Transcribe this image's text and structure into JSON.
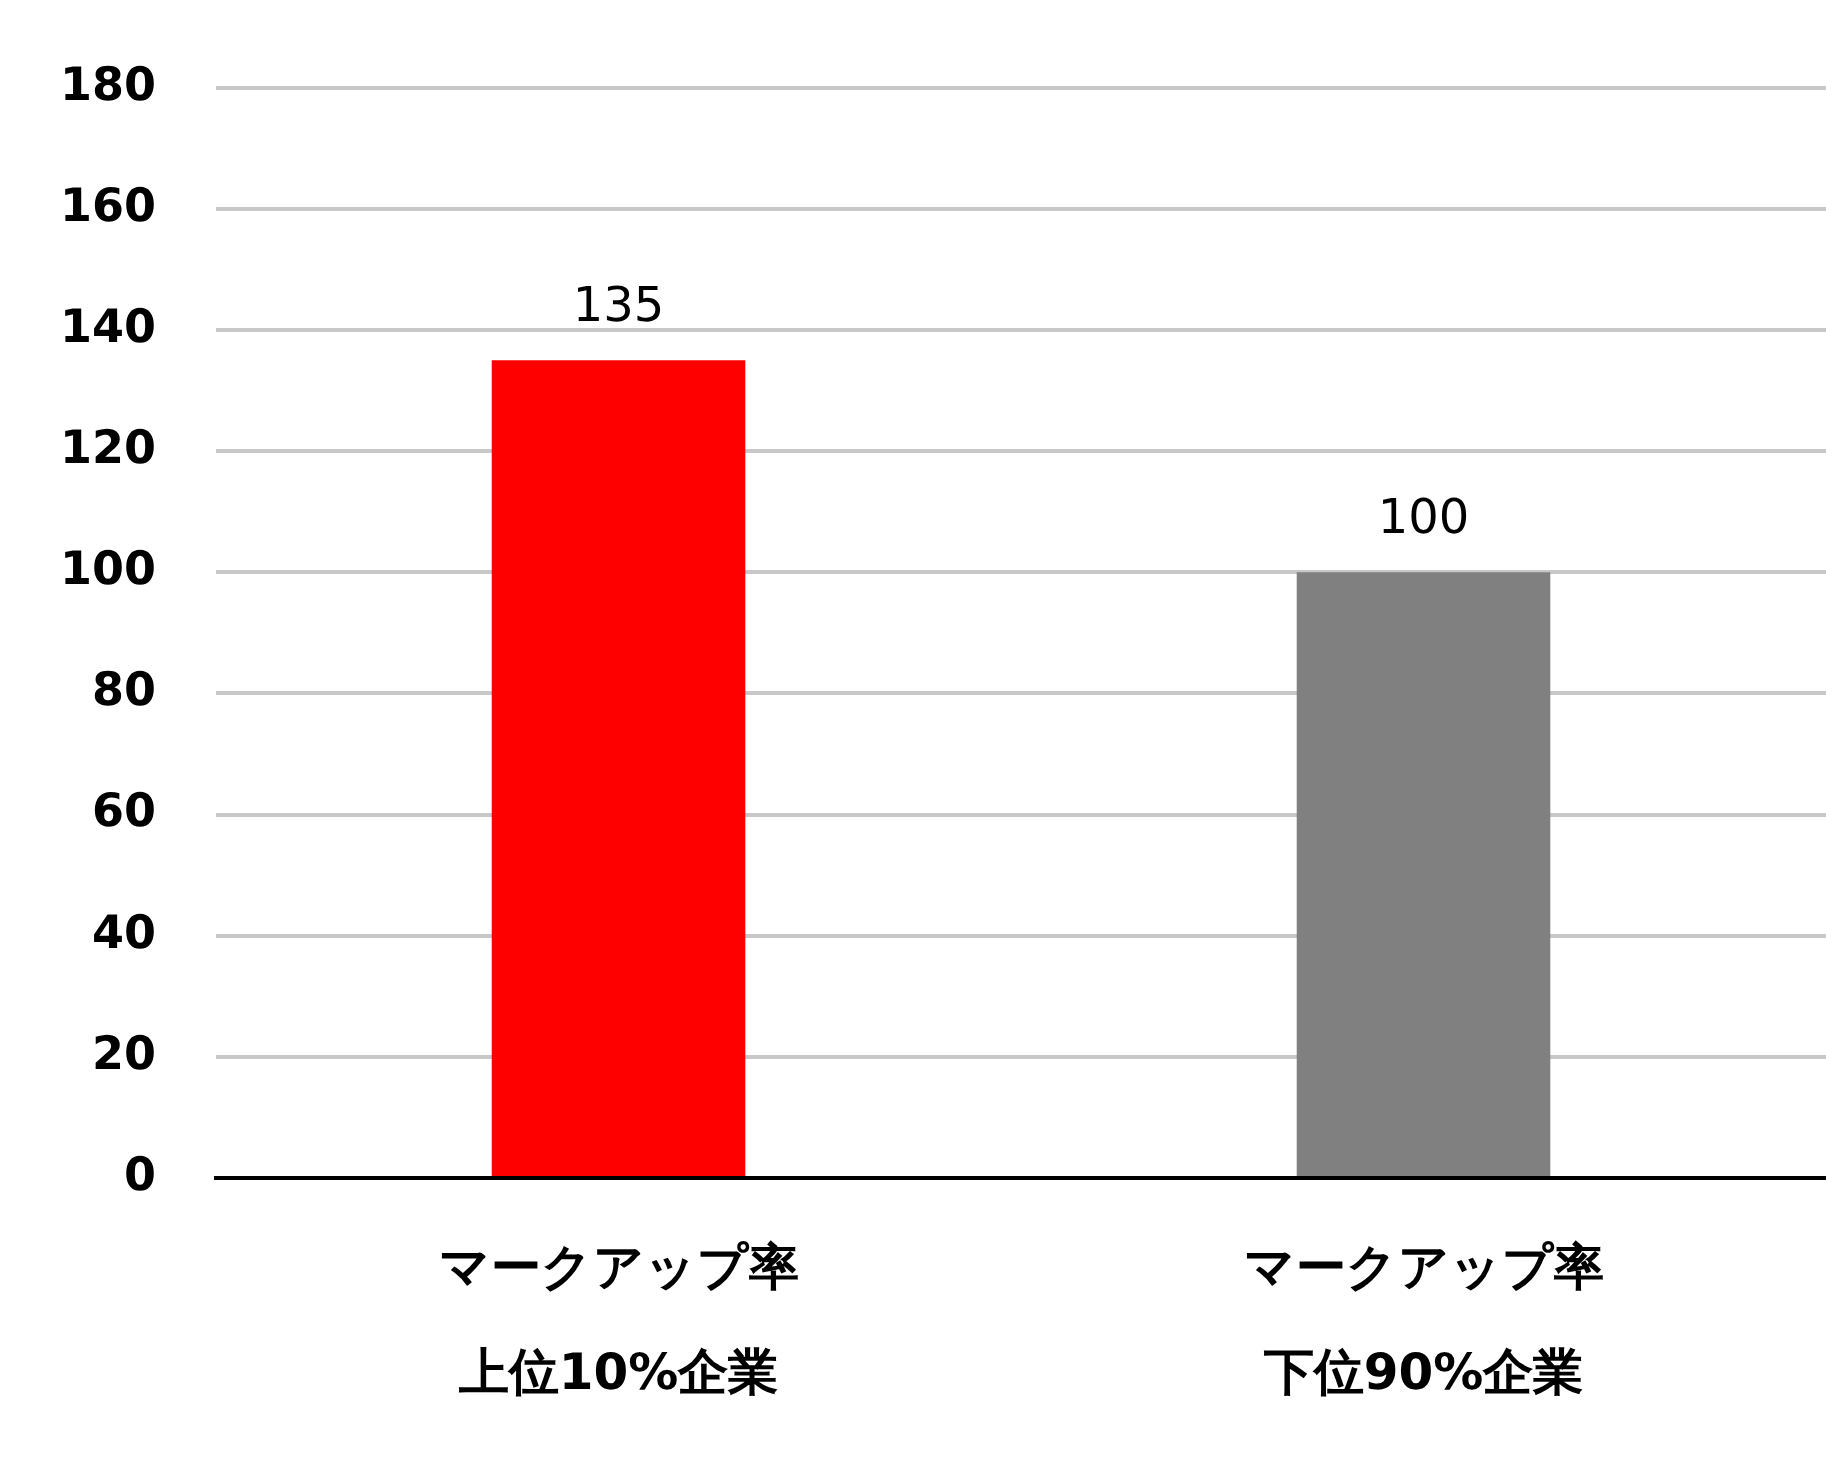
{
  "chart_data": {
    "type": "bar",
    "categories": [
      "マークアップ率上位10%企業",
      "マークアップ率下位90%企業"
    ],
    "values": [
      135,
      100
    ],
    "colors": [
      "#ff0000",
      "#808080"
    ],
    "ylim": [
      0,
      180
    ],
    "yticks": [
      0,
      20,
      40,
      60,
      80,
      100,
      120,
      140,
      160,
      180
    ],
    "grid": "y",
    "data_labels": true,
    "legend": false
  }
}
